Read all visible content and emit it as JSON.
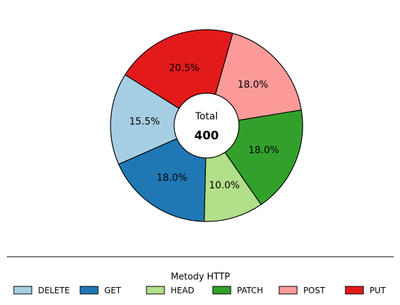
{
  "chart_data": {
    "type": "pie",
    "variant": "donut",
    "categories": [
      "DELETE",
      "GET",
      "HEAD",
      "PATCH",
      "POST",
      "PUT"
    ],
    "values": [
      62,
      72,
      40,
      72,
      72,
      82
    ],
    "percent_labels": [
      "15.5%",
      "18.0%",
      "10.0%",
      "18.0%",
      "18.0%",
      "20.5%"
    ],
    "colors": [
      "#a6cee3",
      "#1f78b4",
      "#b2df8a",
      "#33a02c",
      "#fb9a99",
      "#e31a1c"
    ],
    "center_label": "Total",
    "center_value": "400",
    "legend_title": "Metody HTTP",
    "legend_placement": "bottom"
  }
}
